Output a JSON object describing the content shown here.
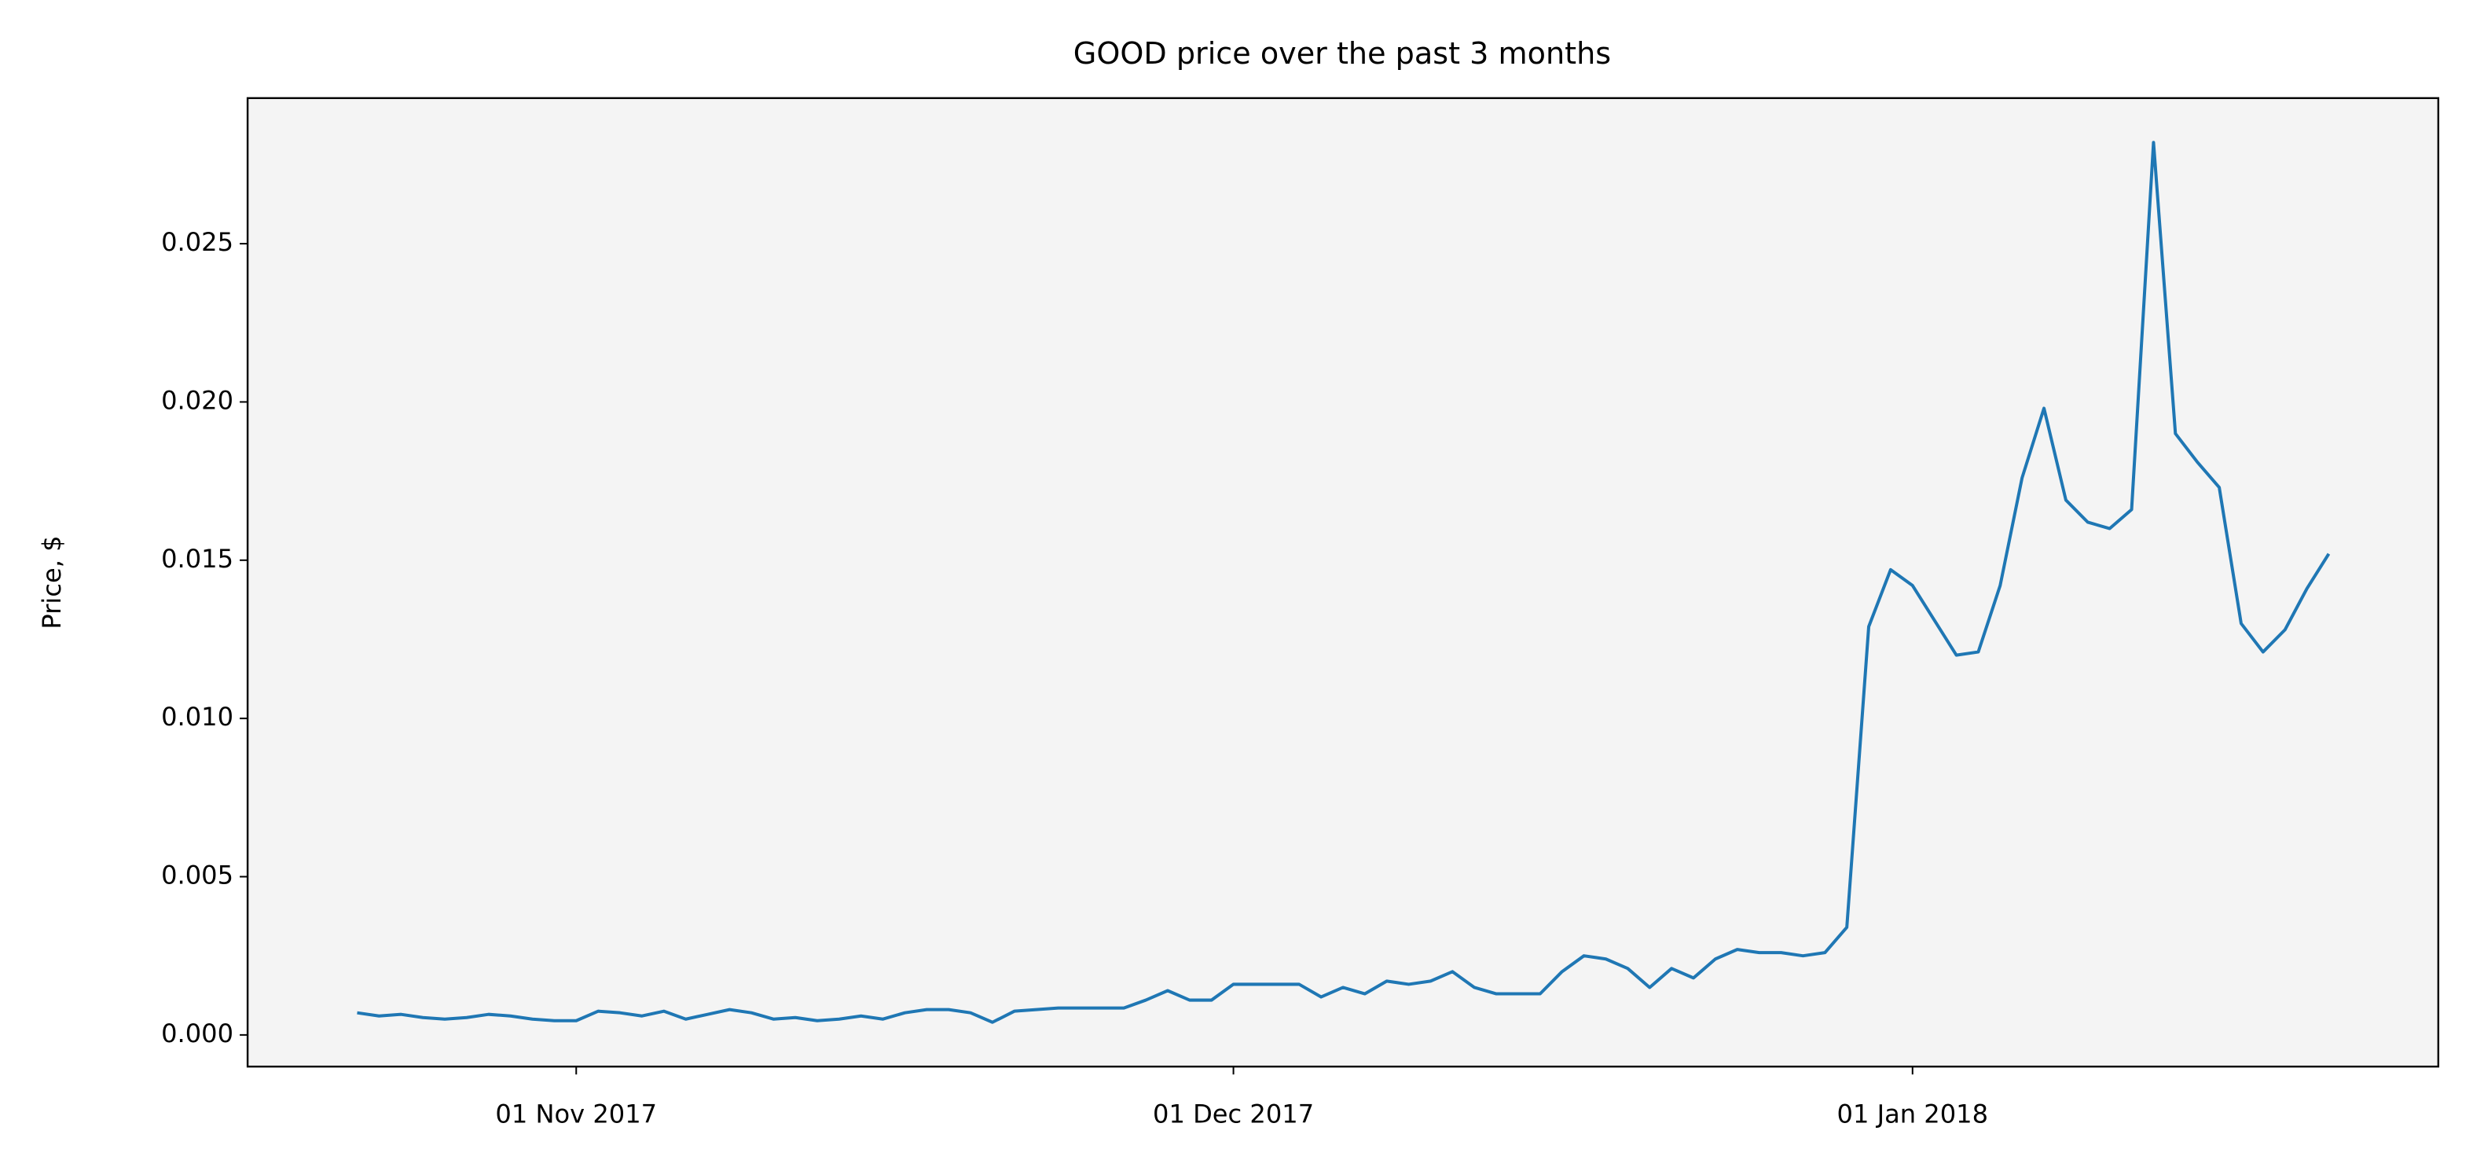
{
  "chart_data": {
    "type": "line",
    "title": "GOOD price over the past 3 months",
    "y_label": "Price, $",
    "x": [
      "2017-10-22",
      "2017-10-23",
      "2017-10-24",
      "2017-10-25",
      "2017-10-26",
      "2017-10-27",
      "2017-10-28",
      "2017-10-29",
      "2017-10-30",
      "2017-10-31",
      "2017-11-01",
      "2017-11-02",
      "2017-11-03",
      "2017-11-04",
      "2017-11-05",
      "2017-11-06",
      "2017-11-07",
      "2017-11-08",
      "2017-11-09",
      "2017-11-10",
      "2017-11-11",
      "2017-11-12",
      "2017-11-13",
      "2017-11-14",
      "2017-11-15",
      "2017-11-16",
      "2017-11-17",
      "2017-11-18",
      "2017-11-19",
      "2017-11-20",
      "2017-11-21",
      "2017-11-22",
      "2017-11-23",
      "2017-11-24",
      "2017-11-25",
      "2017-11-26",
      "2017-11-27",
      "2017-11-28",
      "2017-11-29",
      "2017-11-30",
      "2017-12-01",
      "2017-12-02",
      "2017-12-03",
      "2017-12-04",
      "2017-12-05",
      "2017-12-06",
      "2017-12-07",
      "2017-12-08",
      "2017-12-09",
      "2017-12-10",
      "2017-12-11",
      "2017-12-12",
      "2017-12-13",
      "2017-12-14",
      "2017-12-15",
      "2017-12-16",
      "2017-12-17",
      "2017-12-18",
      "2017-12-19",
      "2017-12-20",
      "2017-12-21",
      "2017-12-22",
      "2017-12-23",
      "2017-12-24",
      "2017-12-25",
      "2017-12-26",
      "2017-12-27",
      "2017-12-28",
      "2017-12-29",
      "2017-12-30",
      "2017-12-31",
      "2018-01-01",
      "2018-01-02",
      "2018-01-03",
      "2018-01-04",
      "2018-01-05",
      "2018-01-06",
      "2018-01-07",
      "2018-01-08",
      "2018-01-09",
      "2018-01-10",
      "2018-01-11",
      "2018-01-12",
      "2018-01-13",
      "2018-01-14",
      "2018-01-15",
      "2018-01-16",
      "2018-01-17",
      "2018-01-18",
      "2018-01-19",
      "2018-01-20"
    ],
    "series": [
      {
        "name": "GOOD",
        "color": "#1f77b4",
        "values": [
          0.0007,
          0.0006,
          0.00065,
          0.00055,
          0.0005,
          0.00055,
          0.00065,
          0.0006,
          0.0005,
          0.00045,
          0.00045,
          0.00075,
          0.0007,
          0.0006,
          0.00075,
          0.0005,
          0.00065,
          0.0008,
          0.0007,
          0.0005,
          0.00055,
          0.00045,
          0.0005,
          0.0006,
          0.0005,
          0.0007,
          0.0008,
          0.0008,
          0.0007,
          0.0004,
          0.00075,
          0.0008,
          0.00085,
          0.00085,
          0.00085,
          0.00085,
          0.0011,
          0.0014,
          0.0011,
          0.0011,
          0.0016,
          0.0016,
          0.0016,
          0.0016,
          0.0012,
          0.0015,
          0.0013,
          0.0017,
          0.0016,
          0.0017,
          0.002,
          0.0015,
          0.0013,
          0.0013,
          0.0013,
          0.002,
          0.0025,
          0.0024,
          0.0021,
          0.0015,
          0.0021,
          0.0018,
          0.0024,
          0.0027,
          0.0026,
          0.0026,
          0.0025,
          0.0026,
          0.0034,
          0.0129,
          0.0147,
          0.0142,
          0.0131,
          0.012,
          0.0121,
          0.0142,
          0.0176,
          0.0198,
          0.0169,
          0.0162,
          0.016,
          0.0166,
          0.0282,
          0.019,
          0.0181,
          0.0173,
          0.013,
          0.0121,
          0.0128,
          0.0141,
          0.0152
        ]
      }
    ],
    "xlim": [
      "2017-10-17",
      "2018-01-25"
    ],
    "xticks": [
      {
        "value": "2017-11-01",
        "label": "01 Nov 2017"
      },
      {
        "value": "2017-12-01",
        "label": "01 Dec 2017"
      },
      {
        "value": "2018-01-01",
        "label": "01 Jan 2018"
      }
    ],
    "ylim": [
      -0.001,
      0.0296
    ],
    "yticks": [
      {
        "value": 0,
        "label": "0.000"
      },
      {
        "value": 0.005,
        "label": "0.005"
      },
      {
        "value": 0.01,
        "label": "0.010"
      },
      {
        "value": 0.015,
        "label": "0.015"
      },
      {
        "value": 0.02,
        "label": "0.020"
      },
      {
        "value": 0.025,
        "label": "0.025"
      }
    ],
    "plot_background": "#f4f4f4"
  }
}
